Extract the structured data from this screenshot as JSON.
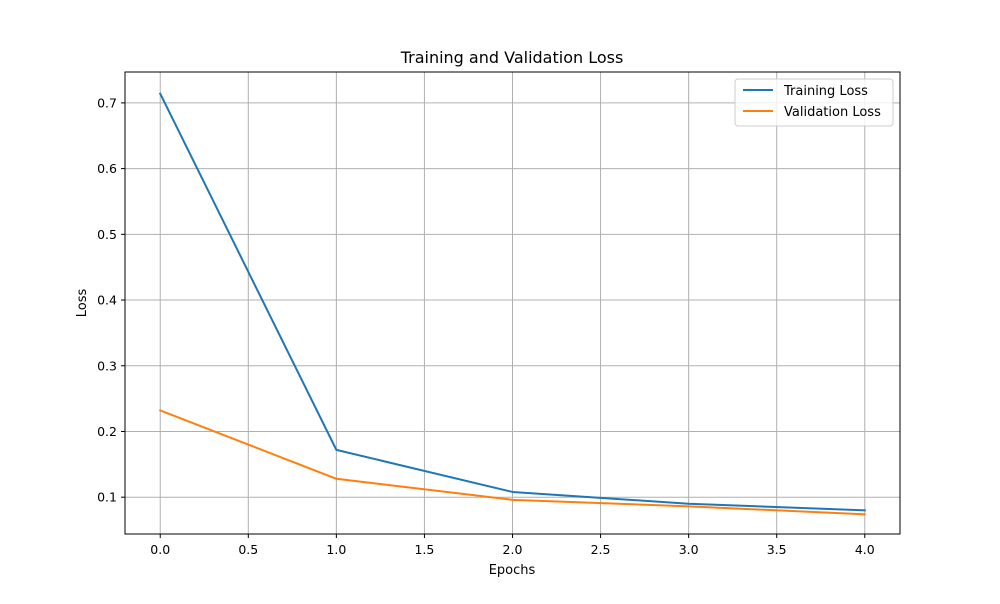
{
  "chart_data": {
    "type": "line",
    "title": "Training and Validation Loss",
    "xlabel": "Epochs",
    "ylabel": "Loss",
    "x": [
      0,
      1,
      2,
      3,
      4
    ],
    "xlim": [
      -0.2,
      4.2
    ],
    "ylim": [
      0.044,
      0.747
    ],
    "xticks": [
      0.0,
      0.5,
      1.0,
      1.5,
      2.0,
      2.5,
      3.0,
      3.5,
      4.0
    ],
    "xtick_labels": [
      "0.0",
      "0.5",
      "1.0",
      "1.5",
      "2.0",
      "2.5",
      "3.0",
      "3.5",
      "4.0"
    ],
    "yticks": [
      0.1,
      0.2,
      0.3,
      0.4,
      0.5,
      0.6,
      0.7
    ],
    "ytick_labels": [
      "0.1",
      "0.2",
      "0.3",
      "0.4",
      "0.5",
      "0.6",
      "0.7"
    ],
    "grid": true,
    "legend_position": "upper right",
    "series": [
      {
        "name": "Training Loss",
        "color": "#1f77b4",
        "values": [
          0.714,
          0.172,
          0.108,
          0.09,
          0.08
        ]
      },
      {
        "name": "Validation Loss",
        "color": "#ff7f0e",
        "values": [
          0.232,
          0.128,
          0.096,
          0.086,
          0.074
        ]
      }
    ]
  }
}
